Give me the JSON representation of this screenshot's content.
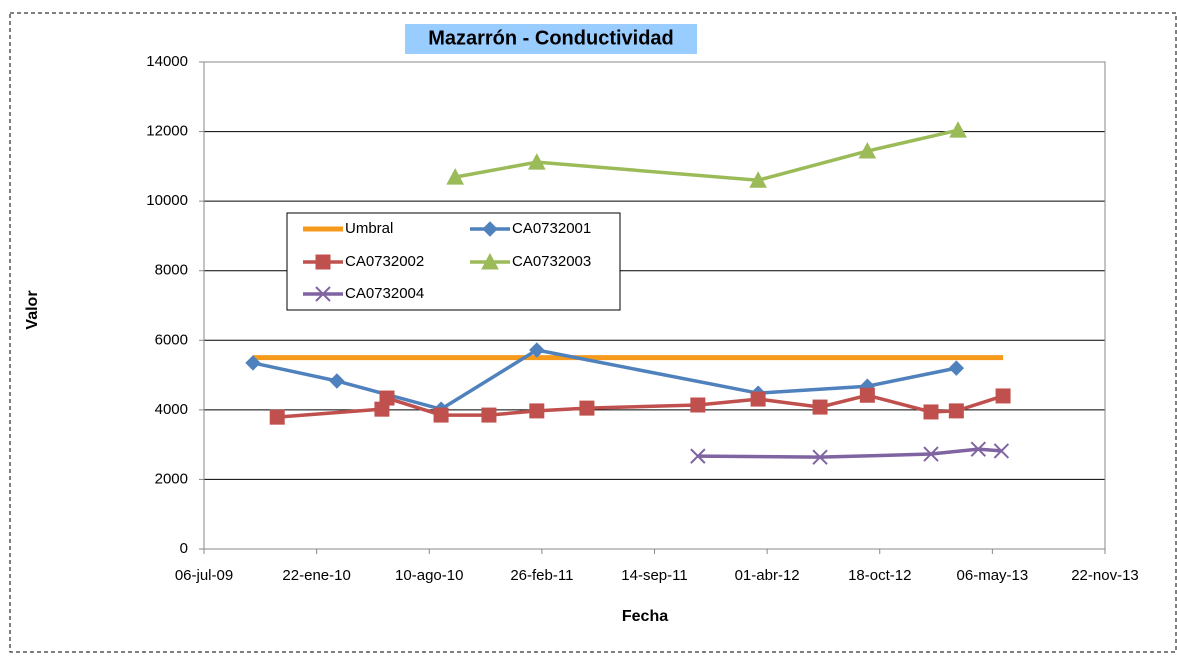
{
  "chart_data": {
    "type": "line",
    "title": "Mazarrón - Conductividad",
    "xlabel": "Fecha",
    "ylabel": "Valor",
    "xlim": [
      "2009-07-06",
      "2013-11-22"
    ],
    "xticks": [
      {
        "value": "2009-07-06",
        "label": "06-jul-09"
      },
      {
        "value": "2010-01-22",
        "label": "22-ene-10"
      },
      {
        "value": "2010-08-10",
        "label": "10-ago-10"
      },
      {
        "value": "2011-02-26",
        "label": "26-feb-11"
      },
      {
        "value": "2011-09-14",
        "label": "14-sep-11"
      },
      {
        "value": "2012-04-01",
        "label": "01-abr-12"
      },
      {
        "value": "2012-10-18",
        "label": "18-oct-12"
      },
      {
        "value": "2013-05-06",
        "label": "06-may-13"
      },
      {
        "value": "2013-11-22",
        "label": "22-nov-13"
      }
    ],
    "ylim": [
      0,
      14000
    ],
    "yticks": [
      0,
      2000,
      4000,
      6000,
      8000,
      10000,
      12000,
      14000
    ],
    "grid": true,
    "legend": "inside",
    "series": [
      {
        "name": "Umbral",
        "color": "#f59a1b",
        "marker": "none",
        "x": [
          "2009-10-01",
          "2013-05-25"
        ],
        "values": [
          5500,
          5500
        ]
      },
      {
        "name": "CA0732001",
        "color": "#4f81bd",
        "marker": "diamond",
        "x": [
          "2009-10-01",
          "2010-02-27",
          "2010-08-31",
          "2011-02-17",
          "2012-03-16",
          "2012-09-26",
          "2013-03-03"
        ],
        "values": [
          5350,
          4830,
          4020,
          5720,
          4480,
          4680,
          5200
        ]
      },
      {
        "name": "CA0732002",
        "color": "#c0504d",
        "marker": "square",
        "x": [
          "2009-11-13",
          "2010-05-18",
          "2010-05-27",
          "2010-08-31",
          "2010-11-24",
          "2011-02-17",
          "2011-05-17",
          "2011-11-30",
          "2012-03-16",
          "2012-07-04",
          "2012-09-26",
          "2013-01-17",
          "2013-03-03",
          "2013-05-25"
        ],
        "values": [
          3790,
          4020,
          4340,
          3850,
          3850,
          3970,
          4050,
          4140,
          4310,
          4080,
          4420,
          3940,
          3970,
          4400
        ]
      },
      {
        "name": "CA0732003",
        "color": "#9bbb59",
        "marker": "triangle",
        "x": [
          "2010-09-25",
          "2011-02-17",
          "2012-03-16",
          "2012-09-26",
          "2013-03-06"
        ],
        "values": [
          10690,
          11120,
          10600,
          11440,
          12040
        ]
      },
      {
        "name": "CA0732004",
        "color": "#8064a2",
        "marker": "x",
        "x": [
          "2011-11-30",
          "2012-07-04",
          "2013-01-17",
          "2013-04-11",
          "2013-05-22"
        ],
        "values": [
          2670,
          2640,
          2730,
          2870,
          2820
        ]
      }
    ]
  }
}
